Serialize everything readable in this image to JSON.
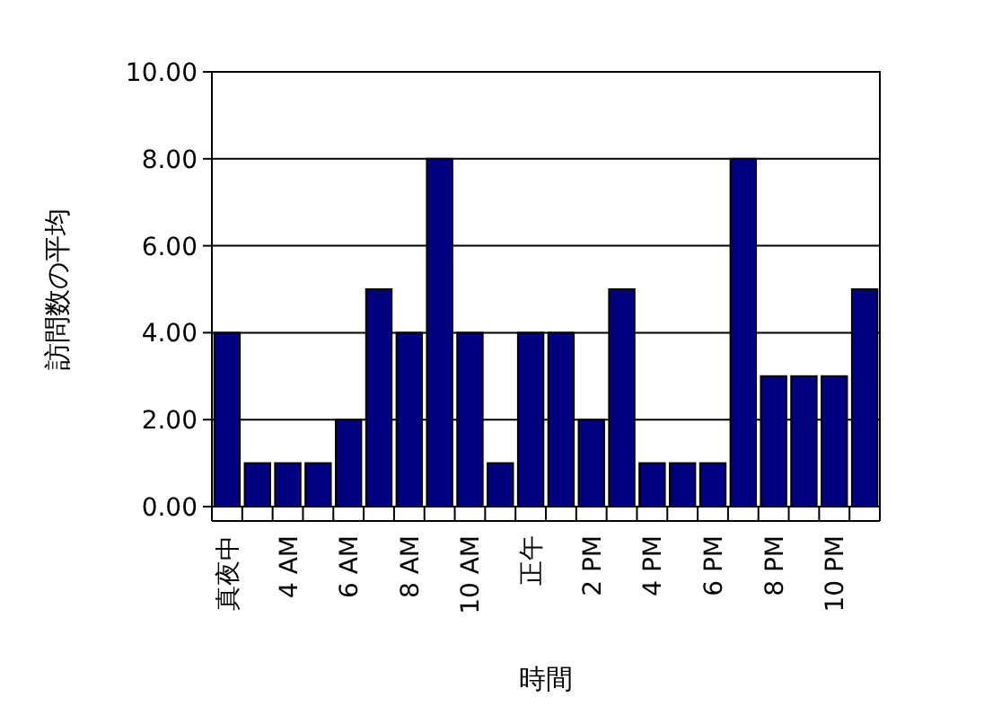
{
  "chart_data": {
    "type": "bar",
    "xlabel": "時間",
    "ylabel": "訪問数の平均",
    "categories": [
      "真夜中",
      null,
      "4 AM",
      null,
      "6 AM",
      null,
      "8 AM",
      null,
      "10 AM",
      null,
      "正午",
      null,
      "2 PM",
      null,
      "4 PM",
      null,
      "6 PM",
      null,
      "8 PM",
      null,
      "10 PM",
      null
    ],
    "values": [
      4,
      1,
      1,
      1,
      2,
      5,
      4,
      8,
      4,
      1,
      4,
      4,
      2,
      5,
      1,
      1,
      1,
      8,
      3,
      3,
      3,
      5
    ],
    "color": "#000080",
    "ylim": [
      0,
      10
    ],
    "yticks": [
      {
        "value": 0,
        "label": "0.00"
      },
      {
        "value": 2,
        "label": "2.00"
      },
      {
        "value": 4,
        "label": "4.00"
      },
      {
        "value": 6,
        "label": "6.00"
      },
      {
        "value": 8,
        "label": "8.00"
      },
      {
        "value": 10,
        "label": "10.00"
      }
    ],
    "grid": "y"
  }
}
